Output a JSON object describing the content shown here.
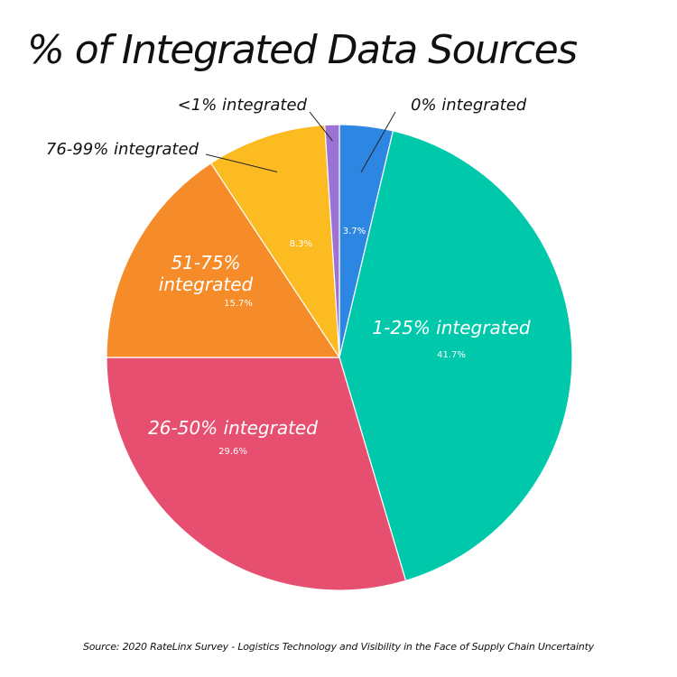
{
  "chart_data": {
    "type": "pie",
    "title": "% of Integrated Data Sources",
    "slices": [
      {
        "label": "0% integrated",
        "value": 3.7,
        "value_label": "3.7%",
        "color": "#2e86e3"
      },
      {
        "label": "1-25% integrated",
        "value": 41.7,
        "value_label": "41.7%",
        "color": "#00c9ab"
      },
      {
        "label": "26-50% integrated",
        "value": 29.6,
        "value_label": "29.6%",
        "color": "#e64f6f"
      },
      {
        "label": "51-75% integrated",
        "value": 15.7,
        "value_label": "15.7%",
        "color": "#f68b29"
      },
      {
        "label": "76-99% integrated",
        "value": 8.3,
        "value_label": "8.3%",
        "color": "#fbbb21"
      },
      {
        "label": "<1% integrated",
        "value": 1.0,
        "value_label": "",
        "color": "#9b72d5"
      }
    ],
    "start_angle_deg": 0,
    "direction": "clockwise",
    "source": "Source: 2020 RateLinx Survey - Logistics Technology and Visibility in the Face of Supply Chain Uncertainty"
  }
}
